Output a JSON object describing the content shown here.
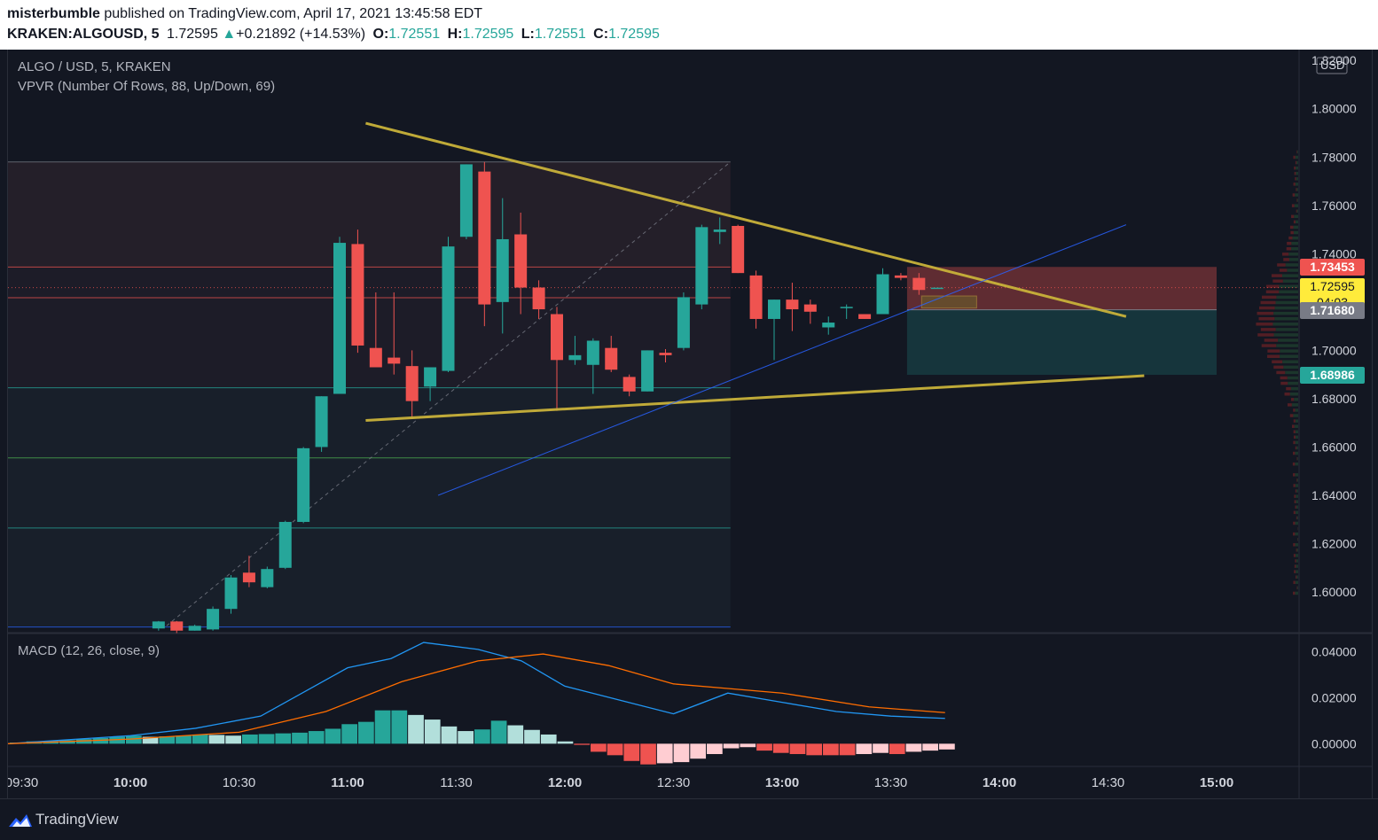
{
  "header": {
    "publisher": "misterbumble",
    "published_text": "published on TradingView.com, April 17, 2021 13:45:58 EDT",
    "symbol": "KRAKEN:ALGOUSD, 5",
    "last": "1.72595",
    "change_arrow": "▲",
    "change": "+0.21892 (+14.53%)",
    "o_label": "O:",
    "o_value": "1.72551",
    "h_label": "H:",
    "h_value": "1.72595",
    "l_label": "L:",
    "l_value": "1.72551",
    "c_label": "C:",
    "c_value": "1.72595"
  },
  "legend": {
    "title": "ALGO / USD, 5, KRAKEN",
    "vpvr": "VPVR (Number Of Rows, 88, Up/Down, 69)",
    "macd": "MACD (12, 26, close, 9)"
  },
  "price_scale": {
    "currency": "USD",
    "labels": [
      "1.82000",
      "1.80000",
      "1.78000",
      "1.76000",
      "1.74000",
      "1.72000",
      "1.70000",
      "1.68000",
      "1.66000",
      "1.64000",
      "1.62000",
      "1.60000"
    ],
    "tags": [
      {
        "value": "1.73453",
        "color": "#ef5350",
        "text_color": "#ffffff"
      },
      {
        "value": "1.72595",
        "sub": "04:03",
        "color": "#ffeb3b",
        "text_color": "#131722"
      },
      {
        "value": "1.71680",
        "color": "#787b86",
        "text_color": "#ffffff"
      },
      {
        "value": "1.68986",
        "color": "#26a69a",
        "text_color": "#ffffff"
      }
    ]
  },
  "macd_scale": {
    "labels": [
      "0.04000",
      "0.02000",
      "0.00000"
    ]
  },
  "time_axis": {
    "labels": [
      "09:30",
      "10:00",
      "10:30",
      "11:00",
      "11:30",
      "12:00",
      "12:30",
      "13:00",
      "13:30",
      "14:00",
      "14:30",
      "15:00"
    ]
  },
  "colors": {
    "up": "#26a69a",
    "down": "#ef5350",
    "trendline": "#c9b23a",
    "macd": "#2196f3",
    "signal": "#ff6d00",
    "background": "#131722"
  },
  "footer": {
    "brand": "TradingView",
    "logo_icon": "tradingview-logo-icon"
  },
  "chart_data": {
    "type": "candlestick",
    "timeframe": "5",
    "ylim": [
      1.585,
      1.823
    ],
    "x_start_time": "09:30",
    "candles": [
      {
        "t": "10:10",
        "o": 1.5849,
        "h": 1.588,
        "l": 1.584,
        "c": 1.5878
      },
      {
        "t": "10:15",
        "o": 1.5878,
        "h": 1.588,
        "l": 1.583,
        "c": 1.584
      },
      {
        "t": "10:20",
        "o": 1.584,
        "h": 1.5865,
        "l": 1.584,
        "c": 1.586
      },
      {
        "t": "10:25",
        "o": 1.5845,
        "h": 1.594,
        "l": 1.584,
        "c": 1.593
      },
      {
        "t": "10:30",
        "o": 1.593,
        "h": 1.607,
        "l": 1.591,
        "c": 1.606
      },
      {
        "t": "10:35",
        "o": 1.608,
        "h": 1.615,
        "l": 1.602,
        "c": 1.604
      },
      {
        "t": "10:40",
        "o": 1.602,
        "h": 1.6105,
        "l": 1.6015,
        "c": 1.6095
      },
      {
        "t": "10:45",
        "o": 1.61,
        "h": 1.6295,
        "l": 1.6095,
        "c": 1.629
      },
      {
        "t": "10:50",
        "o": 1.629,
        "h": 1.66,
        "l": 1.6285,
        "c": 1.6595
      },
      {
        "t": "10:55",
        "o": 1.66,
        "h": 1.681,
        "l": 1.658,
        "c": 1.681
      },
      {
        "t": "11:00",
        "o": 1.682,
        "h": 1.747,
        "l": 1.682,
        "c": 1.7445
      },
      {
        "t": "11:05",
        "o": 1.744,
        "h": 1.75,
        "l": 1.699,
        "c": 1.702
      },
      {
        "t": "11:10",
        "o": 1.701,
        "h": 1.724,
        "l": 1.693,
        "c": 1.693
      },
      {
        "t": "11:15",
        "o": 1.697,
        "h": 1.724,
        "l": 1.69,
        "c": 1.6945
      },
      {
        "t": "11:20",
        "o": 1.6935,
        "h": 1.7,
        "l": 1.672,
        "c": 1.679
      },
      {
        "t": "11:25",
        "o": 1.685,
        "h": 1.693,
        "l": 1.679,
        "c": 1.693
      },
      {
        "t": "11:30",
        "o": 1.6915,
        "h": 1.747,
        "l": 1.691,
        "c": 1.743
      },
      {
        "t": "11:35",
        "o": 1.747,
        "h": 1.777,
        "l": 1.746,
        "c": 1.777
      },
      {
        "t": "11:40",
        "o": 1.774,
        "h": 1.778,
        "l": 1.71,
        "c": 1.719
      },
      {
        "t": "11:45",
        "o": 1.72,
        "h": 1.763,
        "l": 1.707,
        "c": 1.746
      },
      {
        "t": "11:50",
        "o": 1.748,
        "h": 1.757,
        "l": 1.715,
        "c": 1.726
      },
      {
        "t": "11:55",
        "o": 1.726,
        "h": 1.729,
        "l": 1.713,
        "c": 1.717
      },
      {
        "t": "12:00",
        "o": 1.715,
        "h": 1.718,
        "l": 1.675,
        "c": 1.696
      },
      {
        "t": "12:05",
        "o": 1.696,
        "h": 1.706,
        "l": 1.694,
        "c": 1.698
      },
      {
        "t": "12:10",
        "o": 1.694,
        "h": 1.705,
        "l": 1.682,
        "c": 1.704
      },
      {
        "t": "12:15",
        "o": 1.701,
        "h": 1.706,
        "l": 1.691,
        "c": 1.692
      },
      {
        "t": "12:20",
        "o": 1.689,
        "h": 1.69,
        "l": 1.681,
        "c": 1.683
      },
      {
        "t": "12:25",
        "o": 1.683,
        "h": 1.7,
        "l": 1.683,
        "c": 1.7
      },
      {
        "t": "12:30",
        "o": 1.699,
        "h": 1.7005,
        "l": 1.695,
        "c": 1.698
      },
      {
        "t": "12:35",
        "o": 1.701,
        "h": 1.724,
        "l": 1.7,
        "c": 1.722
      },
      {
        "t": "12:40",
        "o": 1.719,
        "h": 1.752,
        "l": 1.717,
        "c": 1.751
      },
      {
        "t": "12:45",
        "o": 1.749,
        "h": 1.755,
        "l": 1.744,
        "c": 1.75
      },
      {
        "t": "12:50",
        "o": 1.7515,
        "h": 1.752,
        "l": 1.732,
        "c": 1.732
      },
      {
        "t": "12:55",
        "o": 1.731,
        "h": 1.733,
        "l": 1.709,
        "c": 1.713
      },
      {
        "t": "13:00",
        "o": 1.713,
        "h": 1.721,
        "l": 1.696,
        "c": 1.721
      },
      {
        "t": "13:05",
        "o": 1.721,
        "h": 1.728,
        "l": 1.708,
        "c": 1.717
      },
      {
        "t": "13:10",
        "o": 1.719,
        "h": 1.721,
        "l": 1.711,
        "c": 1.716
      },
      {
        "t": "13:15",
        "o": 1.7095,
        "h": 1.714,
        "l": 1.7065,
        "c": 1.7115
      },
      {
        "t": "13:20",
        "o": 1.7175,
        "h": 1.719,
        "l": 1.713,
        "c": 1.718
      },
      {
        "t": "13:25",
        "o": 1.715,
        "h": 1.715,
        "l": 1.713,
        "c": 1.713
      },
      {
        "t": "13:30",
        "o": 1.715,
        "h": 1.734,
        "l": 1.715,
        "c": 1.7315
      },
      {
        "t": "13:35",
        "o": 1.731,
        "h": 1.732,
        "l": 1.729,
        "c": 1.73
      },
      {
        "t": "13:40",
        "o": 1.73,
        "h": 1.732,
        "l": 1.723,
        "c": 1.725
      },
      {
        "t": "13:45",
        "o": 1.72551,
        "h": 1.72595,
        "l": 1.72551,
        "c": 1.72595
      }
    ],
    "reference_levels": [
      1.778,
      1.7345,
      1.7218,
      1.6845,
      1.6555,
      1.6265,
      1.5855
    ],
    "trendlines": [
      {
        "from": [
          "11:05",
          1.794
        ],
        "to": [
          "14:35",
          1.714
        ]
      },
      {
        "from": [
          "11:05",
          1.671
        ],
        "to": [
          "14:40",
          1.6895
        ]
      },
      {
        "from": [
          "11:25",
          1.64
        ],
        "to": [
          "14:35",
          1.752
        ]
      }
    ],
    "position": {
      "entry": 1.7168,
      "stop": 1.73453,
      "target": 1.68986,
      "from": "13:35",
      "to": "15:00"
    },
    "macd": {
      "ylim": [
        -0.0095,
        0.0475
      ],
      "macd_line": [
        [
          0.0,
          0.0
        ],
        [
          10.0,
          0.0035
        ],
        [
          10.3,
          0.0067
        ],
        [
          10.6,
          0.012
        ],
        [
          11.0,
          0.033
        ],
        [
          11.2,
          0.037
        ],
        [
          11.35,
          0.044
        ],
        [
          11.6,
          0.041
        ],
        [
          11.8,
          0.036
        ],
        [
          12.0,
          0.025
        ],
        [
          12.25,
          0.019
        ],
        [
          12.5,
          0.013
        ],
        [
          12.75,
          0.022
        ],
        [
          13.0,
          0.018
        ],
        [
          13.25,
          0.014
        ],
        [
          13.5,
          0.012
        ],
        [
          13.75,
          0.011
        ]
      ],
      "signal_line": [
        [
          0.0,
          0.0
        ],
        [
          10.0,
          0.002
        ],
        [
          10.5,
          0.005
        ],
        [
          10.9,
          0.014
        ],
        [
          11.25,
          0.027
        ],
        [
          11.6,
          0.036
        ],
        [
          11.9,
          0.039
        ],
        [
          12.2,
          0.034
        ],
        [
          12.5,
          0.026
        ],
        [
          12.75,
          0.024
        ],
        [
          13.0,
          0.022
        ],
        [
          13.4,
          0.016
        ],
        [
          13.75,
          0.0135
        ]
      ],
      "histogram": [
        0.0005,
        0.001,
        0.0012,
        0.0015,
        0.002,
        0.0025,
        0.003,
        0.0035,
        0.003,
        0.0032,
        0.0035,
        0.004,
        0.0038,
        0.0035,
        0.004,
        0.0042,
        0.0045,
        0.0048,
        0.0055,
        0.0065,
        0.0085,
        0.0095,
        0.0145,
        0.0145,
        0.0125,
        0.0105,
        0.0075,
        0.0055,
        0.0062,
        0.01,
        0.008,
        0.006,
        0.004,
        0.001,
        -0.0005,
        -0.0035,
        -0.005,
        -0.0075,
        -0.009,
        -0.0085,
        -0.008,
        -0.0065,
        -0.0045,
        -0.002,
        -0.0015,
        -0.003,
        -0.004,
        -0.0045,
        -0.005,
        -0.005,
        -0.005,
        -0.0045,
        -0.004,
        -0.0045,
        -0.0035,
        -0.003,
        -0.0025
      ]
    }
  }
}
